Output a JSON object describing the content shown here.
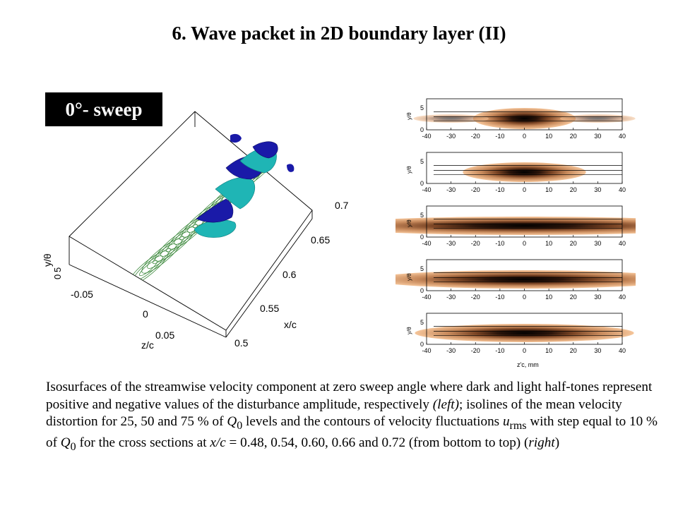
{
  "slide": {
    "title": "6. Wave packet in 2D boundary layer (II)",
    "badge": "0°- sweep"
  },
  "left_figure": {
    "y_axis_label": "y/θ",
    "y_ticks": [
      "5",
      "0"
    ],
    "z_axis_label": "z/c",
    "z_ticks": [
      "-0.05",
      "0",
      "0.05"
    ],
    "x_axis_label": "x/c",
    "x_ticks": [
      "0.7",
      "0.65",
      "0.6",
      "0.55",
      "0.5"
    ],
    "colors": {
      "positive": "#1a1aa8",
      "negative": "#1fb5b5",
      "isolines": "#3e8a3e"
    }
  },
  "right_figure": {
    "y_axis_label": "y/θ",
    "y_ticks": [
      "5",
      "0"
    ],
    "x_ticks": [
      "-40",
      "-30",
      "-20",
      "-10",
      "0",
      "10",
      "20",
      "30",
      "40"
    ],
    "x_axis_label": "z'c, mm",
    "panel_count": 5,
    "colors": {
      "dark": "#000000",
      "mid": "#9a5a36",
      "light": "#f0b98c"
    }
  },
  "caption": {
    "part1": "Isosurfaces of the streamwise velocity component at zero sweep angle where dark and light half-tones represent positive and negative values of the disturbance amplitude, respectively ",
    "left_label": "(left)",
    "part2": "; isolines of the mean velocity distortion for 25, 50 and 75 % of ",
    "q": "Q",
    "q_sub": "0",
    "part3": " levels and the contours of velocity fluctuations ",
    "u": "u",
    "u_sub": "rms",
    "part4": " with step equal to 10 % of ",
    "q2": "Q",
    "q2_sub": "0",
    "part5": " for the cross sections at  ",
    "xc": "x/c",
    "part6": " = 0.48, 0.54, 0.60, 0.66 and 0.72 (from bottom to top) (",
    "right_label": "right",
    "part7": ")"
  }
}
